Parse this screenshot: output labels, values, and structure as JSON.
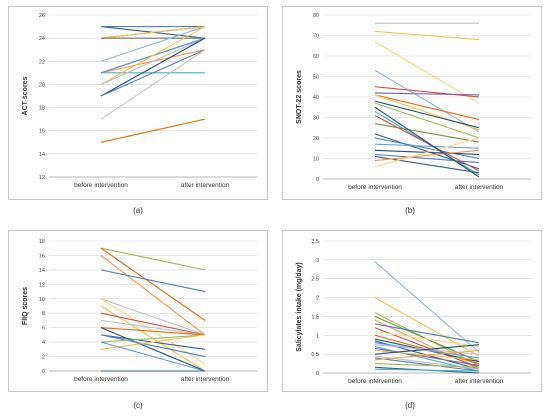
{
  "charts": {
    "chart_a": {
      "caption": "(a)",
      "chart_data": {
        "type": "line",
        "categories": [
          "before intervention",
          "after intervention"
        ],
        "ylabel": "ACT scores",
        "ylim": [
          12,
          26
        ],
        "yticks": [
          12,
          14,
          16,
          18,
          20,
          22,
          24,
          26
        ],
        "grid": true,
        "series": [
          {
            "color": "#2f5f8a",
            "values": [
              25,
              24
            ]
          },
          {
            "color": "#4e7ebc",
            "values": [
              25,
              25
            ]
          },
          {
            "color": "#9bbb59",
            "values": [
              24,
              24
            ]
          },
          {
            "color": "#c0504d",
            "values": [
              24,
              25
            ]
          },
          {
            "color": "#f2c14e",
            "values": [
              24,
              25
            ]
          },
          {
            "color": "#7f7f7f",
            "values": [
              24,
              24
            ]
          },
          {
            "color": "#8db3e2",
            "values": [
              22,
              25
            ]
          },
          {
            "color": "#1f4e79",
            "values": [
              21,
              24
            ]
          },
          {
            "color": "#4bacc6",
            "values": [
              21,
              21
            ]
          },
          {
            "color": "#f79646",
            "values": [
              21,
              23
            ]
          },
          {
            "color": "#5b9bd5",
            "values": [
              21,
              24
            ]
          },
          {
            "color": "#f2c14e",
            "values": [
              20,
              25
            ]
          },
          {
            "color": "#bfbfbf",
            "values": [
              20,
              24
            ]
          },
          {
            "color": "#1f4e79",
            "values": [
              19,
              24
            ]
          },
          {
            "color": "#4e7ebc",
            "values": [
              19,
              23
            ]
          },
          {
            "color": "#c6c6c6",
            "values": [
              17,
              23
            ]
          },
          {
            "color": "#e46c0a",
            "values": [
              15,
              17
            ]
          }
        ]
      }
    },
    "chart_b": {
      "caption": "(b)",
      "chart_data": {
        "type": "line",
        "categories": [
          "before intervention",
          "after intervention"
        ],
        "ylabel": "SNOT-22 scores",
        "ylim": [
          0,
          80
        ],
        "yticks": [
          0,
          10,
          20,
          30,
          40,
          50,
          60,
          70,
          80
        ],
        "grid": true,
        "series": [
          {
            "color": "#c0c0c0",
            "values": [
              76,
              76
            ]
          },
          {
            "color": "#f2c14e",
            "values": [
              72,
              68
            ]
          },
          {
            "color": "#fbd58a",
            "values": [
              67,
              37
            ]
          },
          {
            "color": "#8db3e2",
            "values": [
              53,
              23
            ]
          },
          {
            "color": "#c0504d",
            "values": [
              45,
              40
            ]
          },
          {
            "color": "#8064a2",
            "values": [
              42,
              41
            ]
          },
          {
            "color": "#e46c0a",
            "values": [
              41,
              29
            ]
          },
          {
            "color": "#f2c14e",
            "values": [
              41,
              24
            ]
          },
          {
            "color": "#1f4e79",
            "values": [
              38,
              25
            ]
          },
          {
            "color": "#9bbb59",
            "values": [
              37,
              20
            ]
          },
          {
            "color": "#4bacc6",
            "values": [
              33,
              2
            ]
          },
          {
            "color": "#77933c",
            "values": [
              27,
              18
            ]
          },
          {
            "color": "#2f5f8a",
            "values": [
              22,
              5
            ]
          },
          {
            "color": "#4e7ebc",
            "values": [
              20,
              10
            ]
          },
          {
            "color": "#5b9bd5",
            "values": [
              17,
              15
            ]
          },
          {
            "color": "#1f4e79",
            "values": [
              14,
              12
            ]
          },
          {
            "color": "#4e7ebc",
            "values": [
              12,
              8
            ]
          },
          {
            "color": "#2f5f8a",
            "values": [
              11,
              3
            ]
          },
          {
            "color": "#f79646",
            "values": [
              9,
              14
            ]
          },
          {
            "color": "#fbd58a",
            "values": [
              6,
              20
            ]
          },
          {
            "color": "#c0504d",
            "values": [
              31,
              4
            ]
          },
          {
            "color": "#1f4e79",
            "values": [
              35,
              1
            ]
          }
        ]
      }
    },
    "chart_c": {
      "caption": "(c)",
      "chart_data": {
        "type": "line",
        "categories": [
          "before intervention",
          "after intervention"
        ],
        "ylabel": "FIIQ scores",
        "ylim": [
          0,
          18
        ],
        "yticks": [
          0,
          2,
          4,
          6,
          8,
          10,
          12,
          14,
          16,
          18
        ],
        "grid": true,
        "series": [
          {
            "color": "#9bbb59",
            "values": [
              17,
              14
            ]
          },
          {
            "color": "#e46c0a",
            "values": [
              17,
              7
            ]
          },
          {
            "color": "#f79646",
            "values": [
              16,
              5
            ]
          },
          {
            "color": "#4e7ebc",
            "values": [
              14,
              11
            ]
          },
          {
            "color": "#c0c0c0",
            "values": [
              10,
              5
            ]
          },
          {
            "color": "#fbd58a",
            "values": [
              10,
              1
            ]
          },
          {
            "color": "#f2c14e",
            "values": [
              9,
              0
            ]
          },
          {
            "color": "#c0504d",
            "values": [
              8,
              5
            ]
          },
          {
            "color": "#bfbfbf",
            "values": [
              7,
              5
            ]
          },
          {
            "color": "#e46c0a",
            "values": [
              6,
              5
            ]
          },
          {
            "color": "#1f4e79",
            "values": [
              6,
              0
            ]
          },
          {
            "color": "#2f5f8a",
            "values": [
              5,
              3
            ]
          },
          {
            "color": "#4e7ebc",
            "values": [
              5,
              2
            ]
          },
          {
            "color": "#9bbb59",
            "values": [
              4,
              5
            ]
          },
          {
            "color": "#f2c14e",
            "values": [
              3,
              5
            ]
          },
          {
            "color": "#5b9bd5",
            "values": [
              4,
              0
            ]
          },
          {
            "color": "#2f5f8a",
            "values": [
              0,
              0
            ]
          }
        ]
      }
    },
    "chart_d": {
      "caption": "(d)",
      "chart_data": {
        "type": "line",
        "categories": [
          "before intervention",
          "after intervention"
        ],
        "ylabel": "Salicylates intake (mg/day)",
        "ylim": [
          0,
          3.5
        ],
        "yticks": [
          0,
          0.5,
          1,
          1.5,
          2,
          2.5,
          3,
          3.5
        ],
        "grid": true,
        "series": [
          {
            "color": "#8db3e2",
            "values": [
              2.95,
              0.55
            ]
          },
          {
            "color": "#f2c14e",
            "values": [
              2.0,
              0.45
            ]
          },
          {
            "color": "#9bbb59",
            "values": [
              1.6,
              0.2
            ]
          },
          {
            "color": "#77933c",
            "values": [
              1.5,
              0.3
            ]
          },
          {
            "color": "#f79646",
            "values": [
              1.4,
              0.1
            ]
          },
          {
            "color": "#4e7ebc",
            "values": [
              1.3,
              0.8
            ]
          },
          {
            "color": "#c0504d",
            "values": [
              1.2,
              0.15
            ]
          },
          {
            "color": "#fbd58a",
            "values": [
              1.1,
              0.7
            ]
          },
          {
            "color": "#e46c0a",
            "values": [
              1.0,
              0.25
            ]
          },
          {
            "color": "#1f4e79",
            "values": [
              0.9,
              0.3
            ]
          },
          {
            "color": "#2f5f8a",
            "values": [
              0.85,
              0.1
            ]
          },
          {
            "color": "#5b9bd5",
            "values": [
              0.8,
              0.4
            ]
          },
          {
            "color": "#c0c0c0",
            "values": [
              0.75,
              0.5
            ]
          },
          {
            "color": "#4bacc6",
            "values": [
              0.7,
              0.05
            ]
          },
          {
            "color": "#8064a2",
            "values": [
              0.65,
              0.2
            ]
          },
          {
            "color": "#f2c14e",
            "values": [
              0.6,
              0.35
            ]
          },
          {
            "color": "#1f4e79",
            "values": [
              0.5,
              0.75
            ]
          },
          {
            "color": "#bfbfbf",
            "values": [
              0.45,
              0.1
            ]
          },
          {
            "color": "#4e7ebc",
            "values": [
              0.4,
              0.05
            ]
          },
          {
            "color": "#f79646",
            "values": [
              0.35,
              0.6
            ]
          },
          {
            "color": "#9bbb59",
            "values": [
              0.25,
              0.15
            ]
          },
          {
            "color": "#2f5f8a",
            "values": [
              0.15,
              0.0
            ]
          },
          {
            "color": "#4bacc6",
            "values": [
              0.1,
              0.05
            ]
          }
        ]
      }
    }
  }
}
